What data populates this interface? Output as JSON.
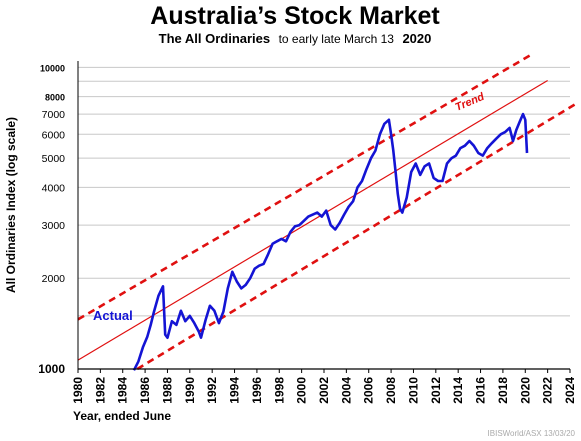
{
  "chart_data": {
    "type": "line",
    "title": "Australia’s Stock Market",
    "subtitle": {
      "bold_part": "The All Ordinaries",
      "plain_part": "to early late  March 13",
      "bold_year": "2020"
    },
    "xlabel": "Year, ended June",
    "ylabel": "All Ordinaries Index (log scale)",
    "y_scale": "log",
    "ylim": [
      1000,
      10500
    ],
    "xlim": [
      1980,
      2024
    ],
    "x_ticks": [
      "1980",
      "1982",
      "1984",
      "1986",
      "1988",
      "1990",
      "1992",
      "1994",
      "1996",
      "1998",
      "2000",
      "2002",
      "2004",
      "2006",
      "2008",
      "2010",
      "2012",
      "2014",
      "2016",
      "2018",
      "2020",
      "2022",
      "2024"
    ],
    "y_ticks": [
      {
        "value": 1000,
        "label": "1000"
      },
      {
        "value": 2000,
        "label": "2000"
      },
      {
        "value": 3000,
        "label": "3000"
      },
      {
        "value": 4000,
        "label": "4000"
      },
      {
        "value": 5000,
        "label": "5000"
      },
      {
        "value": 6000,
        "label": "6000"
      },
      {
        "value": 7000,
        "label": "7000"
      },
      {
        "value": 8000,
        "label": "8000"
      },
      {
        "value": 10000,
        "label": "10000"
      }
    ],
    "grid_values": [
      1500,
      2000,
      3000,
      4000,
      5000,
      6000,
      7000,
      8000,
      9000,
      10000
    ],
    "annotations": {
      "actual": "Actual",
      "trend": "Trend"
    },
    "series": [
      {
        "name": "Actual",
        "color": "#1414d4",
        "points": [
          [
            1985.0,
            990
          ],
          [
            1985.4,
            1060
          ],
          [
            1985.8,
            1180
          ],
          [
            1986.2,
            1280
          ],
          [
            1986.5,
            1400
          ],
          [
            1986.8,
            1550
          ],
          [
            1987.2,
            1750
          ],
          [
            1987.6,
            1880
          ],
          [
            1987.8,
            1300
          ],
          [
            1988.0,
            1270
          ],
          [
            1988.4,
            1440
          ],
          [
            1988.8,
            1400
          ],
          [
            1989.2,
            1560
          ],
          [
            1989.6,
            1440
          ],
          [
            1990.0,
            1500
          ],
          [
            1990.4,
            1420
          ],
          [
            1990.8,
            1330
          ],
          [
            1991.0,
            1270
          ],
          [
            1991.4,
            1450
          ],
          [
            1991.8,
            1620
          ],
          [
            1992.2,
            1560
          ],
          [
            1992.6,
            1420
          ],
          [
            1993.0,
            1550
          ],
          [
            1993.4,
            1850
          ],
          [
            1993.8,
            2100
          ],
          [
            1994.2,
            1950
          ],
          [
            1994.6,
            1850
          ],
          [
            1995.0,
            1900
          ],
          [
            1995.4,
            2000
          ],
          [
            1995.8,
            2150
          ],
          [
            1996.2,
            2200
          ],
          [
            1996.6,
            2230
          ],
          [
            1997.0,
            2400
          ],
          [
            1997.4,
            2600
          ],
          [
            1997.8,
            2650
          ],
          [
            1998.2,
            2700
          ],
          [
            1998.6,
            2650
          ],
          [
            1999.0,
            2850
          ],
          [
            1999.4,
            2970
          ],
          [
            1999.8,
            3000
          ],
          [
            2000.2,
            3100
          ],
          [
            2000.6,
            3200
          ],
          [
            2001.0,
            3250
          ],
          [
            2001.4,
            3300
          ],
          [
            2001.8,
            3200
          ],
          [
            2002.2,
            3350
          ],
          [
            2002.6,
            3000
          ],
          [
            2003.0,
            2900
          ],
          [
            2003.4,
            3050
          ],
          [
            2003.8,
            3250
          ],
          [
            2004.2,
            3450
          ],
          [
            2004.6,
            3600
          ],
          [
            2005.0,
            4000
          ],
          [
            2005.4,
            4200
          ],
          [
            2005.8,
            4600
          ],
          [
            2006.2,
            5000
          ],
          [
            2006.6,
            5300
          ],
          [
            2007.0,
            6000
          ],
          [
            2007.4,
            6500
          ],
          [
            2007.8,
            6700
          ],
          [
            2008.0,
            6000
          ],
          [
            2008.2,
            5300
          ],
          [
            2008.4,
            4500
          ],
          [
            2008.6,
            3800
          ],
          [
            2008.8,
            3400
          ],
          [
            2009.0,
            3300
          ],
          [
            2009.4,
            3700
          ],
          [
            2009.8,
            4500
          ],
          [
            2010.2,
            4800
          ],
          [
            2010.6,
            4400
          ],
          [
            2011.0,
            4700
          ],
          [
            2011.4,
            4800
          ],
          [
            2011.8,
            4300
          ],
          [
            2012.2,
            4200
          ],
          [
            2012.6,
            4200
          ],
          [
            2013.0,
            4800
          ],
          [
            2013.4,
            5000
          ],
          [
            2013.8,
            5100
          ],
          [
            2014.2,
            5400
          ],
          [
            2014.6,
            5500
          ],
          [
            2015.0,
            5700
          ],
          [
            2015.4,
            5500
          ],
          [
            2015.8,
            5200
          ],
          [
            2016.2,
            5100
          ],
          [
            2016.6,
            5400
          ],
          [
            2017.0,
            5600
          ],
          [
            2017.4,
            5800
          ],
          [
            2017.8,
            6000
          ],
          [
            2018.2,
            6100
          ],
          [
            2018.6,
            6300
          ],
          [
            2018.9,
            5700
          ],
          [
            2019.2,
            6200
          ],
          [
            2019.5,
            6600
          ],
          [
            2019.8,
            7000
          ],
          [
            2020.0,
            6700
          ],
          [
            2020.15,
            5200
          ]
        ]
      },
      {
        "name": "Trend",
        "color": "#e01010",
        "style": "solid",
        "points": [
          [
            1980,
            1070
          ],
          [
            2022,
            9050
          ]
        ]
      },
      {
        "name": "Upper band",
        "color": "#e01010",
        "style": "dashed",
        "points": [
          [
            1980,
            1460
          ],
          [
            2020.5,
            11000
          ]
        ]
      },
      {
        "name": "Lower band",
        "color": "#e01010",
        "style": "dashed",
        "points": [
          [
            1985.3,
            1000
          ],
          [
            2024.6,
            7600
          ]
        ]
      }
    ]
  },
  "source": "IBISWorld/ASX 13/03/20"
}
